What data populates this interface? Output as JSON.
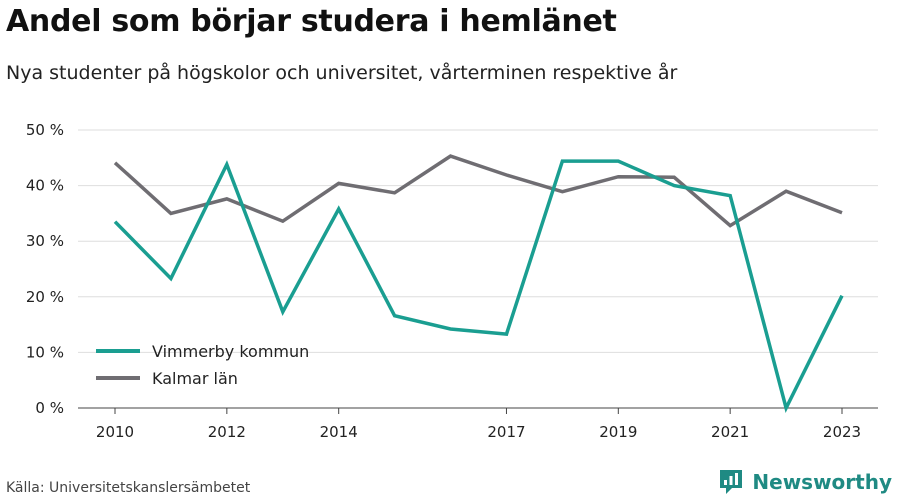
{
  "header": {
    "title": "Andel som börjar studera i hemlänet",
    "subtitle": "Nya studenter på högskolor och universitet, vårterminen respektive år"
  },
  "footer": {
    "source": "Källa: Universitetskanslersämbetet",
    "brand": "Newsworthy",
    "brand_icon": "newsworthy-logo-icon",
    "brand_color": "#1f8a83"
  },
  "chart_data": {
    "type": "line",
    "x": [
      2010,
      2011,
      2012,
      2013,
      2014,
      2015,
      2016,
      2017,
      2018,
      2019,
      2020,
      2021,
      2022,
      2023
    ],
    "x_tick_labels": [
      "2010",
      "2012",
      "2014",
      "2017",
      "2019",
      "2021",
      "2023"
    ],
    "x_tick_values": [
      2010,
      2012,
      2014,
      2017,
      2019,
      2021,
      2023
    ],
    "ylim": [
      0,
      50
    ],
    "y_ticks": [
      0,
      10,
      20,
      30,
      40,
      50
    ],
    "y_tick_labels": [
      "0 %",
      "10 %",
      "20 %",
      "30 %",
      "40 %",
      "50 %"
    ],
    "grid": true,
    "legend_position": "bottom-left",
    "series": [
      {
        "name": "Vimmerby kommun",
        "color": "#1a9e91",
        "values": [
          33.5,
          23.3,
          43.8,
          17.3,
          35.8,
          16.6,
          14.2,
          13.3,
          44.4,
          44.4,
          40.0,
          38.2,
          0.0,
          20.2
        ]
      },
      {
        "name": "Kalmar län",
        "color": "#6f6d72",
        "values": [
          44.1,
          35.0,
          37.6,
          33.6,
          40.4,
          38.7,
          45.3,
          41.9,
          38.9,
          41.6,
          41.5,
          32.8,
          39.0,
          35.1
        ]
      }
    ]
  }
}
